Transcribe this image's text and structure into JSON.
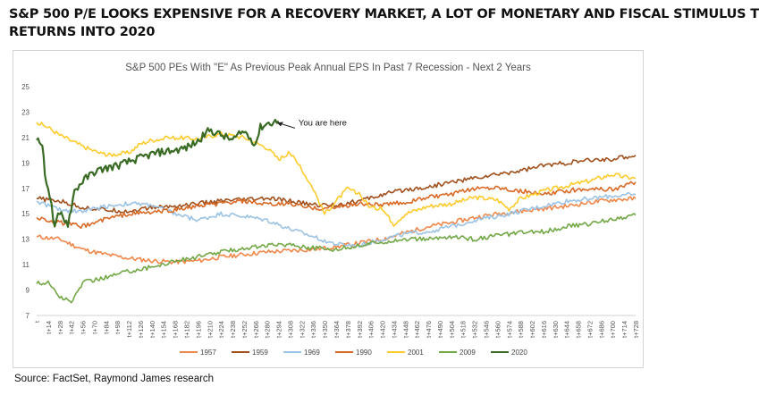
{
  "headline": {
    "line1": "S&P 500 P/E LOOKS EXPENSIVE FOR A RECOVERY MARKET, A LOT OF MONETARY AND FISCAL STIMULUS T",
    "line2": "RETURNS INTO 2020"
  },
  "source": "Source: FactSet, Raymond James research",
  "chart_data": {
    "type": "line",
    "title": "S&P 500 PEs With \"E\" As Previous Peak Annual EPS In Past 7 Recession - Next 2 Years",
    "xlabel": "",
    "ylabel": "",
    "ylim": [
      7,
      25
    ],
    "yticks": [
      7,
      9,
      11,
      13,
      15,
      17,
      19,
      21,
      23,
      25
    ],
    "xticks": [
      "t",
      "t+14",
      "t+28",
      "t+42",
      "t+56",
      "t+70",
      "t+84",
      "t+98",
      "t+112",
      "t+126",
      "t+140",
      "t+154",
      "t+168",
      "t+182",
      "t+196",
      "t+210",
      "t+224",
      "t+238",
      "t+252",
      "t+266",
      "t+280",
      "t+294",
      "t+308",
      "t+322",
      "t+336",
      "t+350",
      "t+364",
      "t+378",
      "t+392",
      "t+406",
      "t+420",
      "t+434",
      "t+448",
      "t+462",
      "t+476",
      "t+490",
      "t+504",
      "t+518",
      "t+532",
      "t+546",
      "t+560",
      "t+574",
      "t+588",
      "t+602",
      "t+616",
      "t+630",
      "t+644",
      "t+658",
      "t+672",
      "t+686",
      "t+700",
      "t+714",
      "t+728"
    ],
    "grid": false,
    "legend_position": "bottom",
    "annotation": {
      "text": "You are here",
      "x": 290,
      "y": 22.3
    },
    "series": [
      {
        "name": "1957",
        "color": "#f0874a",
        "points": [
          [
            0,
            13.2
          ],
          [
            28,
            13.0
          ],
          [
            56,
            12.2
          ],
          [
            84,
            11.8
          ],
          [
            112,
            11.5
          ],
          [
            140,
            11.3
          ],
          [
            168,
            11.2
          ],
          [
            196,
            11.3
          ],
          [
            224,
            11.6
          ],
          [
            252,
            11.8
          ],
          [
            280,
            12.0
          ],
          [
            308,
            12.1
          ],
          [
            336,
            12.2
          ],
          [
            364,
            12.4
          ],
          [
            392,
            12.7
          ],
          [
            420,
            13.0
          ],
          [
            448,
            13.5
          ],
          [
            476,
            14.0
          ],
          [
            504,
            14.3
          ],
          [
            532,
            14.7
          ],
          [
            560,
            15.0
          ],
          [
            588,
            15.2
          ],
          [
            616,
            15.4
          ],
          [
            644,
            15.6
          ],
          [
            672,
            15.9
          ],
          [
            700,
            16.1
          ],
          [
            728,
            16.2
          ]
        ]
      },
      {
        "name": "1959",
        "color": "#a0501c",
        "points": [
          [
            0,
            16.2
          ],
          [
            28,
            16.0
          ],
          [
            56,
            15.5
          ],
          [
            84,
            15.3
          ],
          [
            112,
            15.2
          ],
          [
            140,
            15.5
          ],
          [
            168,
            15.6
          ],
          [
            196,
            15.8
          ],
          [
            224,
            16.0
          ],
          [
            252,
            16.1
          ],
          [
            280,
            16.2
          ],
          [
            308,
            16.0
          ],
          [
            336,
            15.7
          ],
          [
            364,
            15.7
          ],
          [
            392,
            16.0
          ],
          [
            420,
            16.5
          ],
          [
            448,
            16.9
          ],
          [
            476,
            17.1
          ],
          [
            504,
            17.5
          ],
          [
            532,
            17.8
          ],
          [
            560,
            18.1
          ],
          [
            588,
            18.4
          ],
          [
            616,
            18.8
          ],
          [
            644,
            19.0
          ],
          [
            672,
            19.2
          ],
          [
            700,
            19.3
          ],
          [
            728,
            19.6
          ]
        ]
      },
      {
        "name": "1969",
        "color": "#9cc3e4",
        "points": [
          [
            0,
            16.0
          ],
          [
            28,
            15.3
          ],
          [
            56,
            15.2
          ],
          [
            84,
            15.6
          ],
          [
            112,
            15.8
          ],
          [
            140,
            15.7
          ],
          [
            168,
            15.0
          ],
          [
            196,
            14.5
          ],
          [
            224,
            15.0
          ],
          [
            252,
            14.8
          ],
          [
            280,
            14.5
          ],
          [
            308,
            13.8
          ],
          [
            336,
            13.2
          ],
          [
            364,
            12.6
          ],
          [
            392,
            12.5
          ],
          [
            420,
            13.0
          ],
          [
            448,
            13.4
          ],
          [
            476,
            13.6
          ],
          [
            504,
            14.0
          ],
          [
            532,
            14.5
          ],
          [
            560,
            14.8
          ],
          [
            588,
            15.2
          ],
          [
            616,
            15.6
          ],
          [
            644,
            16.0
          ],
          [
            672,
            16.2
          ],
          [
            700,
            16.4
          ],
          [
            728,
            16.5
          ]
        ]
      },
      {
        "name": "1990",
        "color": "#d96a26",
        "points": [
          [
            0,
            14.7
          ],
          [
            28,
            14.3
          ],
          [
            56,
            14.0
          ],
          [
            84,
            14.6
          ],
          [
            112,
            15.0
          ],
          [
            140,
            15.1
          ],
          [
            168,
            15.3
          ],
          [
            196,
            15.6
          ],
          [
            224,
            15.8
          ],
          [
            252,
            16.0
          ],
          [
            280,
            15.7
          ],
          [
            308,
            15.8
          ],
          [
            336,
            15.4
          ],
          [
            364,
            15.5
          ],
          [
            392,
            15.8
          ],
          [
            420,
            15.7
          ],
          [
            448,
            15.9
          ],
          [
            476,
            16.3
          ],
          [
            504,
            16.5
          ],
          [
            532,
            17.0
          ],
          [
            560,
            17.1
          ],
          [
            588,
            16.8
          ],
          [
            616,
            16.5
          ],
          [
            644,
            16.8
          ],
          [
            672,
            17.0
          ],
          [
            700,
            16.9
          ],
          [
            728,
            17.5
          ]
        ]
      },
      {
        "name": "2001",
        "color": "#fdcb2c",
        "points": [
          [
            0,
            22.2
          ],
          [
            14,
            21.8
          ],
          [
            28,
            21.2
          ],
          [
            56,
            20.3
          ],
          [
            84,
            19.6
          ],
          [
            112,
            19.8
          ],
          [
            126,
            20.5
          ],
          [
            140,
            20.8
          ],
          [
            168,
            21.0
          ],
          [
            196,
            20.9
          ],
          [
            224,
            21.3
          ],
          [
            252,
            21.0
          ],
          [
            280,
            20.2
          ],
          [
            294,
            19.3
          ],
          [
            308,
            19.8
          ],
          [
            322,
            18.5
          ],
          [
            336,
            17.0
          ],
          [
            350,
            15.0
          ],
          [
            364,
            16.0
          ],
          [
            378,
            17.0
          ],
          [
            392,
            16.5
          ],
          [
            406,
            15.5
          ],
          [
            420,
            15.4
          ],
          [
            434,
            14.2
          ],
          [
            448,
            15.0
          ],
          [
            476,
            15.6
          ],
          [
            504,
            15.8
          ],
          [
            532,
            16.3
          ],
          [
            560,
            16.1
          ],
          [
            574,
            15.4
          ],
          [
            588,
            16.2
          ],
          [
            616,
            16.8
          ],
          [
            644,
            17.2
          ],
          [
            672,
            17.6
          ],
          [
            700,
            18.1
          ],
          [
            714,
            17.9
          ],
          [
            728,
            17.8
          ]
        ]
      },
      {
        "name": "2009",
        "color": "#72a846",
        "points": [
          [
            0,
            9.5
          ],
          [
            14,
            9.6
          ],
          [
            28,
            8.5
          ],
          [
            42,
            8.0
          ],
          [
            56,
            9.6
          ],
          [
            84,
            10.0
          ],
          [
            112,
            10.5
          ],
          [
            140,
            10.8
          ],
          [
            168,
            11.3
          ],
          [
            196,
            11.6
          ],
          [
            224,
            12.0
          ],
          [
            252,
            12.3
          ],
          [
            280,
            12.5
          ],
          [
            308,
            12.6
          ],
          [
            336,
            12.3
          ],
          [
            364,
            12.2
          ],
          [
            392,
            12.5
          ],
          [
            420,
            12.8
          ],
          [
            448,
            13.0
          ],
          [
            476,
            13.0
          ],
          [
            504,
            13.2
          ],
          [
            532,
            13.0
          ],
          [
            560,
            13.3
          ],
          [
            588,
            13.5
          ],
          [
            616,
            13.6
          ],
          [
            644,
            14.0
          ],
          [
            672,
            14.2
          ],
          [
            700,
            14.6
          ],
          [
            728,
            14.9
          ]
        ]
      },
      {
        "name": "2020",
        "color": "#3a6b24",
        "points": [
          [
            0,
            20.8
          ],
          [
            7,
            20.5
          ],
          [
            10,
            18.0
          ],
          [
            14,
            17.2
          ],
          [
            18,
            15.6
          ],
          [
            22,
            13.8
          ],
          [
            26,
            14.8
          ],
          [
            30,
            15.0
          ],
          [
            38,
            14.2
          ],
          [
            46,
            16.8
          ],
          [
            56,
            17.6
          ],
          [
            70,
            18.3
          ],
          [
            84,
            18.6
          ],
          [
            98,
            18.8
          ],
          [
            112,
            19.1
          ],
          [
            126,
            19.4
          ],
          [
            140,
            19.7
          ],
          [
            154,
            19.9
          ],
          [
            168,
            20.0
          ],
          [
            182,
            20.2
          ],
          [
            196,
            20.7
          ],
          [
            210,
            21.6
          ],
          [
            224,
            21.2
          ],
          [
            238,
            20.8
          ],
          [
            252,
            21.5
          ],
          [
            266,
            20.5
          ],
          [
            272,
            21.8
          ],
          [
            280,
            22.1
          ],
          [
            288,
            22.2
          ],
          [
            294,
            22.3
          ]
        ]
      }
    ]
  }
}
